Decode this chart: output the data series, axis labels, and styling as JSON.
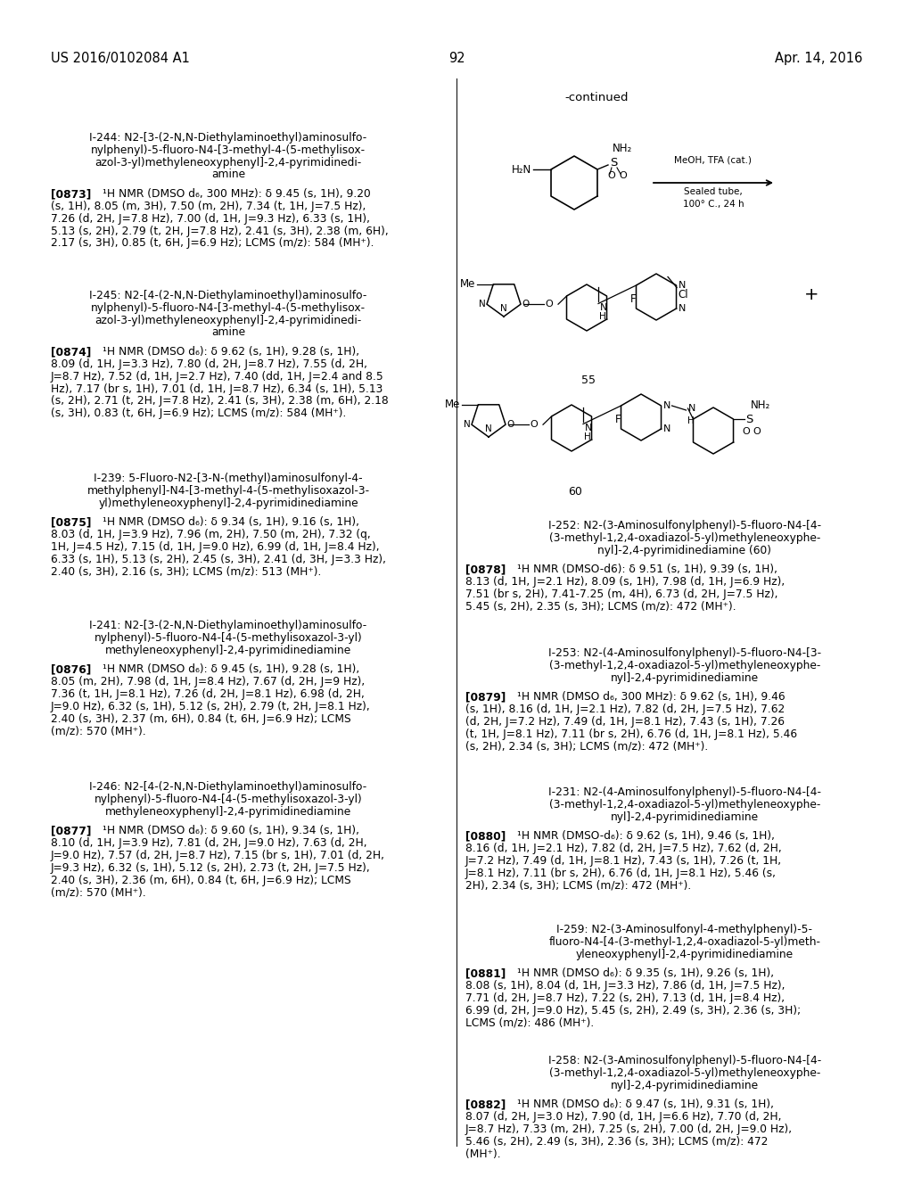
{
  "bg_color": "#ffffff",
  "header_left": "US 2016/0102084 A1",
  "header_center": "92",
  "header_right": "Apr. 14, 2016",
  "left_entries": [
    {
      "name_lines": [
        "I-244: N2-[3-(2-N,N-Diethylaminoethyl)aminosulfo-",
        "nylphenyl)-5-fluoro-N4-[3-methyl-4-(5-methylisox-",
        "azol-3-yl)methyleneoxyphenyl]-2,4-pyrimidinedi-",
        "amine"
      ],
      "ref": "[0873]",
      "nmr_lines": [
        "¹H NMR (DMSO d₆, 300 MHz): δ 9.45 (s, 1H), 9.20",
        "(s, 1H), 8.05 (m, 3H), 7.50 (m, 2H), 7.34 (t, 1H, J=7.5 Hz),",
        "7.26 (d, 2H, J=7.8 Hz), 7.00 (d, 1H, J=9.3 Hz), 6.33 (s, 1H),",
        "5.13 (s, 2H), 2.79 (t, 2H, J=7.8 Hz), 2.41 (s, 3H), 2.38 (m, 6H),",
        "2.17 (s, 3H), 0.85 (t, 6H, J=6.9 Hz); LCMS (m/z): 584 (MH⁺)."
      ],
      "ytop": 148
    },
    {
      "name_lines": [
        "I-245: N2-[4-(2-N,N-Diethylaminoethyl)aminosulfo-",
        "nylphenyl)-5-fluoro-N4-[3-methyl-4-(5-methylisox-",
        "azol-3-yl)methyleneoxyphenyl]-2,4-pyrimidinedi-",
        "amine"
      ],
      "ref": "[0874]",
      "nmr_lines": [
        "¹H NMR (DMSO d₆): δ 9.62 (s, 1H), 9.28 (s, 1H),",
        "8.09 (d, 1H, J=3.3 Hz), 7.80 (d, 2H, J=8.7 Hz), 7.55 (d, 2H,",
        "J=8.7 Hz), 7.52 (d, 1H, J=2.7 Hz), 7.40 (dd, 1H, J=2.4 and 8.5",
        "Hz), 7.17 (br s, 1H), 7.01 (d, 1H, J=8.7 Hz), 6.34 (s, 1H), 5.13",
        "(s, 2H), 2.71 (t, 2H, J=7.8 Hz), 2.41 (s, 3H), 2.38 (m, 6H), 2.18",
        "(s, 3H), 0.83 (t, 6H, J=6.9 Hz); LCMS (m/z): 584 (MH⁺)."
      ],
      "ytop": 325
    },
    {
      "name_lines": [
        "I-239: 5-Fluoro-N2-[3-N-(methyl)aminosulfonyl-4-",
        "methylphenyl]-N4-[3-methyl-4-(5-methylisoxazol-3-",
        "yl)methyleneoxyphenyl]-2,4-pyrimidinediamine"
      ],
      "ref": "[0875]",
      "nmr_lines": [
        "¹H NMR (DMSO d₆): δ 9.34 (s, 1H), 9.16 (s, 1H),",
        "8.03 (d, 1H, J=3.9 Hz), 7.96 (m, 2H), 7.50 (m, 2H), 7.32 (q,",
        "1H, J=4.5 Hz), 7.15 (d, 1H, J=9.0 Hz), 6.99 (d, 1H, J=8.4 Hz),",
        "6.33 (s, 1H), 5.13 (s, 2H), 2.45 (s, 3H), 2.41 (d, 3H, J=3.3 Hz),",
        "2.40 (s, 3H), 2.16 (s, 3H); LCMS (m/z): 513 (MH⁺)."
      ],
      "ytop": 530
    },
    {
      "name_lines": [
        "I-241: N2-[3-(2-N,N-Diethylaminoethyl)aminosulfo-",
        "nylphenyl)-5-fluoro-N4-[4-(5-methylisoxazol-3-yl)",
        "methyleneoxyphenyl]-2,4-pyrimidinediamine"
      ],
      "ref": "[0876]",
      "nmr_lines": [
        "¹H NMR (DMSO d₆): δ 9.45 (s, 1H), 9.28 (s, 1H),",
        "8.05 (m, 2H), 7.98 (d, 1H, J=8.4 Hz), 7.67 (d, 2H, J=9 Hz),",
        "7.36 (t, 1H, J=8.1 Hz), 7.26 (d, 2H, J=8.1 Hz), 6.98 (d, 2H,",
        "J=9.0 Hz), 6.32 (s, 1H), 5.12 (s, 2H), 2.79 (t, 2H, J=8.1 Hz),",
        "2.40 (s, 3H), 2.37 (m, 6H), 0.84 (t, 6H, J=6.9 Hz); LCMS",
        "(m/z): 570 (MH⁺)."
      ],
      "ytop": 695
    },
    {
      "name_lines": [
        "I-246: N2-[4-(2-N,N-Diethylaminoethyl)aminosulfo-",
        "nylphenyl)-5-fluoro-N4-[4-(5-methylisoxazol-3-yl)",
        "methyleneoxyphenyl]-2,4-pyrimidinediamine"
      ],
      "ref": "[0877]",
      "nmr_lines": [
        "¹H NMR (DMSO d₆): δ 9.60 (s, 1H), 9.34 (s, 1H),",
        "8.10 (d, 1H, J=3.9 Hz), 7.81 (d, 2H, J=9.0 Hz), 7.63 (d, 2H,",
        "J=9.0 Hz), 7.57 (d, 2H, J=8.7 Hz), 7.15 (br s, 1H), 7.01 (d, 2H,",
        "J=9.3 Hz), 6.32 (s, 1H), 5.12 (s, 2H), 2.73 (t, 2H, J=7.5 Hz),",
        "2.40 (s, 3H), 2.36 (m, 6H), 0.84 (t, 6H, J=6.9 Hz); LCMS",
        "(m/z): 570 (MH⁺)."
      ],
      "ytop": 876
    }
  ],
  "right_entries": [
    {
      "name_lines": [
        "I-252: N2-(3-Aminosulfonylphenyl)-5-fluoro-N4-[4-",
        "(3-methyl-1,2,4-oxadiazol-5-yl)methyleneoxyphe-",
        "nyl]-2,4-pyrimidinediamine (60)"
      ],
      "ref": "[0878]",
      "nmr_lines": [
        "¹H NMR (DMSO-d6): δ 9.51 (s, 1H), 9.39 (s, 1H),",
        "8.13 (d, 1H, J=2.1 Hz), 8.09 (s, 1H), 7.98 (d, 1H, J=6.9 Hz),",
        "7.51 (br s, 2H), 7.41-7.25 (m, 4H), 6.73 (d, 2H, J=7.5 Hz),",
        "5.45 (s, 2H), 2.35 (s, 3H); LCMS (m/z): 472 (MH⁺)."
      ],
      "ytop": 583
    },
    {
      "name_lines": [
        "I-253: N2-(4-Aminosulfonylphenyl)-5-fluoro-N4-[3-",
        "(3-methyl-1,2,4-oxadiazol-5-yl)methyleneoxyphe-",
        "nyl]-2,4-pyrimidinediamine"
      ],
      "ref": "[0879]",
      "nmr_lines": [
        "¹H NMR (DMSO d₆, 300 MHz): δ 9.62 (s, 1H), 9.46",
        "(s, 1H), 8.16 (d, 1H, J=2.1 Hz), 7.82 (d, 2H, J=7.5 Hz), 7.62",
        "(d, 2H, J=7.2 Hz), 7.49 (d, 1H, J=8.1 Hz), 7.43 (s, 1H), 7.26",
        "(t, 1H, J=8.1 Hz), 7.11 (br s, 2H), 6.76 (d, 1H, J=8.1 Hz), 5.46",
        "(s, 2H), 2.34 (s, 3H); LCMS (m/z): 472 (MH⁺)."
      ],
      "ytop": 726
    },
    {
      "name_lines": [
        "I-231: N2-(4-Aminosulfonylphenyl)-5-fluoro-N4-[4-",
        "(3-methyl-1,2,4-oxadiazol-5-yl)methyleneoxyphe-",
        "nyl]-2,4-pyrimidinediamine"
      ],
      "ref": "[0880]",
      "nmr_lines": [
        "¹H NMR (DMSO-d₆): δ 9.62 (s, 1H), 9.46 (s, 1H),",
        "8.16 (d, 1H, J=2.1 Hz), 7.82 (d, 2H, J=7.5 Hz), 7.62 (d, 2H,",
        "J=7.2 Hz), 7.49 (d, 1H, J=8.1 Hz), 7.43 (s, 1H), 7.26 (t, 1H,",
        "J=8.1 Hz), 7.11 (br s, 2H), 6.76 (d, 1H, J=8.1 Hz), 5.46 (s,",
        "2H), 2.34 (s, 3H); LCMS (m/z): 472 (MH⁺)."
      ],
      "ytop": 882
    },
    {
      "name_lines": [
        "I-259: N2-(3-Aminosulfonyl-4-methylphenyl)-5-",
        "fluoro-N4-[4-(3-methyl-1,2,4-oxadiazol-5-yl)meth-",
        "yleneoxyphenyl]-2,4-pyrimidinediamine"
      ],
      "ref": "[0881]",
      "nmr_lines": [
        "¹H NMR (DMSO d₆): δ 9.35 (s, 1H), 9.26 (s, 1H),",
        "8.08 (s, 1H), 8.04 (d, 1H, J=3.3 Hz), 7.86 (d, 1H, J=7.5 Hz),",
        "7.71 (d, 2H, J=8.7 Hz), 7.22 (s, 2H), 7.13 (d, 1H, J=8.4 Hz),",
        "6.99 (d, 2H, J=9.0 Hz), 5.45 (s, 2H), 2.49 (s, 3H), 2.36 (s, 3H);",
        "LCMS (m/z): 486 (MH⁺)."
      ],
      "ytop": 1036
    },
    {
      "name_lines": [
        "I-258: N2-(3-Aminosulfonylphenyl)-5-fluoro-N4-[4-",
        "(3-methyl-1,2,4-oxadiazol-5-yl)methyleneoxyphe-",
        "nyl]-2,4-pyrimidinediamine"
      ],
      "ref": "[0882]",
      "nmr_lines": [
        "¹H NMR (DMSO d₆): δ 9.47 (s, 1H), 9.31 (s, 1H),",
        "8.07 (d, 2H, J=3.0 Hz), 7.90 (d, 1H, J=6.6 Hz), 7.70 (d, 2H,",
        "J=8.7 Hz), 7.33 (m, 2H), 7.25 (s, 2H), 7.00 (d, 2H, J=9.0 Hz),",
        "5.46 (s, 2H), 2.49 (s, 3H), 2.36 (s, 3H); LCMS (m/z): 472",
        "(MH⁺)."
      ],
      "ytop": 1183
    }
  ]
}
